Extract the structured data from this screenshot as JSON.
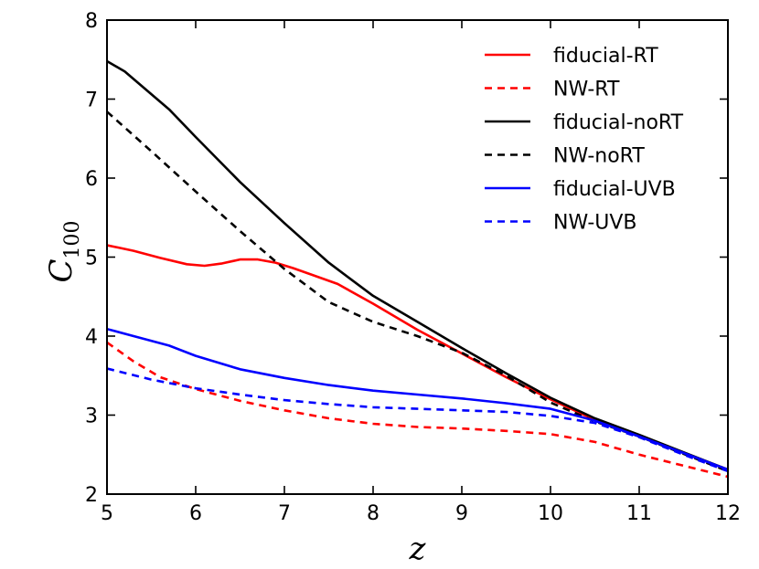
{
  "chart_data": {
    "type": "line",
    "title": "",
    "xlabel": "z",
    "ylabel_main": "C",
    "ylabel_sub": "100",
    "xlim": [
      5,
      12
    ],
    "ylim": [
      2,
      8
    ],
    "xticks": [
      5,
      6,
      7,
      8,
      9,
      10,
      11,
      12
    ],
    "yticks": [
      2,
      3,
      4,
      5,
      6,
      7,
      8
    ],
    "grid": false,
    "legend_position": "top-right",
    "colors": {
      "red": "#ff0000",
      "black": "#000000",
      "blue": "#0000ff"
    },
    "series": [
      {
        "name": "fiducial-RT",
        "color": "#ff0000",
        "dashed": false,
        "points": [
          [
            5,
            5.15
          ],
          [
            5.3,
            5.08
          ],
          [
            5.6,
            4.99
          ],
          [
            5.9,
            4.91
          ],
          [
            6.1,
            4.89
          ],
          [
            6.3,
            4.92
          ],
          [
            6.5,
            4.97
          ],
          [
            6.7,
            4.97
          ],
          [
            6.9,
            4.93
          ],
          [
            7.1,
            4.86
          ],
          [
            7.3,
            4.78
          ],
          [
            7.6,
            4.66
          ],
          [
            8,
            4.41
          ],
          [
            8.5,
            4.08
          ],
          [
            9,
            3.78
          ],
          [
            9.5,
            3.48
          ],
          [
            10,
            3.2
          ],
          [
            10.5,
            2.94
          ],
          [
            11,
            2.74
          ],
          [
            11.5,
            2.52
          ],
          [
            12,
            2.31
          ]
        ]
      },
      {
        "name": "NW-RT",
        "color": "#ff0000",
        "dashed": true,
        "points": [
          [
            5,
            3.92
          ],
          [
            5.3,
            3.68
          ],
          [
            5.6,
            3.48
          ],
          [
            6,
            3.33
          ],
          [
            6.5,
            3.18
          ],
          [
            7,
            3.06
          ],
          [
            7.5,
            2.96
          ],
          [
            8,
            2.89
          ],
          [
            8.5,
            2.85
          ],
          [
            9,
            2.83
          ],
          [
            9.5,
            2.8
          ],
          [
            10,
            2.76
          ],
          [
            10.5,
            2.66
          ],
          [
            11,
            2.5
          ],
          [
            11.5,
            2.36
          ],
          [
            12,
            2.22
          ]
        ]
      },
      {
        "name": "fiducial-noRT",
        "color": "#000000",
        "dashed": false,
        "points": [
          [
            5,
            7.48
          ],
          [
            5.2,
            7.35
          ],
          [
            5.7,
            6.87
          ],
          [
            6,
            6.52
          ],
          [
            6.5,
            5.95
          ],
          [
            7,
            5.43
          ],
          [
            7.5,
            4.93
          ],
          [
            8,
            4.51
          ],
          [
            8.5,
            4.18
          ],
          [
            9,
            3.85
          ],
          [
            9.5,
            3.53
          ],
          [
            10,
            3.22
          ],
          [
            10.5,
            2.96
          ],
          [
            11,
            2.75
          ],
          [
            11.5,
            2.53
          ],
          [
            12,
            2.31
          ]
        ]
      },
      {
        "name": "NW-noRT",
        "color": "#000000",
        "dashed": true,
        "points": [
          [
            5,
            6.84
          ],
          [
            5.5,
            6.34
          ],
          [
            6,
            5.83
          ],
          [
            6.5,
            5.33
          ],
          [
            7,
            4.85
          ],
          [
            7.5,
            4.43
          ],
          [
            8,
            4.18
          ],
          [
            8.5,
            4.0
          ],
          [
            9,
            3.79
          ],
          [
            9.5,
            3.5
          ],
          [
            10,
            3.16
          ],
          [
            10.5,
            2.92
          ],
          [
            11,
            2.73
          ],
          [
            11.5,
            2.51
          ],
          [
            12,
            2.29
          ]
        ]
      },
      {
        "name": "fiducial-UVB",
        "color": "#0000ff",
        "dashed": false,
        "points": [
          [
            5,
            4.09
          ],
          [
            5.3,
            4.0
          ],
          [
            5.7,
            3.88
          ],
          [
            6,
            3.75
          ],
          [
            6.5,
            3.58
          ],
          [
            7,
            3.47
          ],
          [
            7.5,
            3.38
          ],
          [
            8,
            3.31
          ],
          [
            8.5,
            3.26
          ],
          [
            9,
            3.21
          ],
          [
            9.5,
            3.15
          ],
          [
            10,
            3.08
          ],
          [
            10.5,
            2.93
          ],
          [
            11,
            2.73
          ],
          [
            11.5,
            2.52
          ],
          [
            12,
            2.31
          ]
        ]
      },
      {
        "name": "NW-UVB",
        "color": "#0000ff",
        "dashed": true,
        "points": [
          [
            5,
            3.59
          ],
          [
            5.5,
            3.45
          ],
          [
            6,
            3.34
          ],
          [
            6.5,
            3.26
          ],
          [
            7,
            3.19
          ],
          [
            7.5,
            3.14
          ],
          [
            8,
            3.1
          ],
          [
            8.5,
            3.08
          ],
          [
            9,
            3.06
          ],
          [
            9.5,
            3.04
          ],
          [
            10,
            2.99
          ],
          [
            10.5,
            2.9
          ],
          [
            11,
            2.72
          ],
          [
            11.5,
            2.5
          ],
          [
            12,
            2.29
          ]
        ]
      }
    ]
  }
}
